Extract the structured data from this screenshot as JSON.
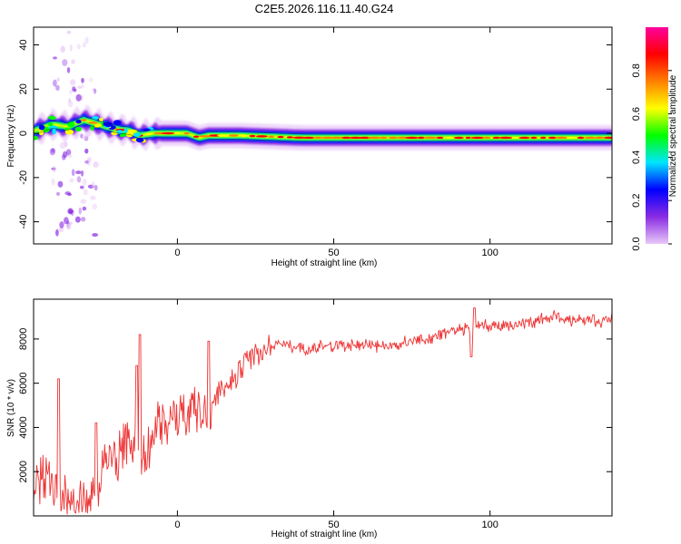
{
  "figure": {
    "title": "C2E5.2026.116.11.40.G24"
  },
  "chart_data": [
    {
      "type": "heatmap",
      "xlabel": "Height of straight line (km)",
      "ylabel": "Frequency (Hz)",
      "xlim": [
        -46,
        139
      ],
      "ylim": [
        -50,
        48
      ],
      "xticks": [
        0,
        50,
        100
      ],
      "yticks": [
        -40,
        -20,
        0,
        20,
        40
      ],
      "ridge": {
        "x": [
          -46,
          -40,
          -35,
          -30,
          -25,
          -20,
          -15,
          -12,
          -8,
          -5,
          0,
          3,
          5,
          7,
          10,
          20,
          40,
          60,
          80,
          90,
          95,
          100,
          120,
          139
        ],
        "y": [
          1,
          4,
          3,
          6,
          4,
          2,
          1,
          -1,
          0,
          0,
          0,
          0,
          -1,
          -2,
          -1,
          -1,
          -2,
          -2,
          -2,
          -2,
          -2,
          -2,
          -2,
          -2
        ]
      },
      "colorbar": {
        "label": "Normalized spectral amplitude",
        "range": [
          0.0,
          1.0
        ],
        "ticks": [
          "0.0",
          "0.2",
          "0.4",
          "0.6",
          "0.8"
        ],
        "colors": [
          "#e8c8f8",
          "#8a2be2",
          "#0000ff",
          "#00e5ff",
          "#00ff00",
          "#ffff00",
          "#ff8000",
          "#ff0000",
          "#ff00a0"
        ]
      }
    },
    {
      "type": "line",
      "xlabel": "Height of straight line (km)",
      "ylabel": "SNR (10 * v/v)",
      "xlim": [
        -46,
        139
      ],
      "ylim": [
        0,
        9800
      ],
      "xticks": [
        0,
        50,
        100
      ],
      "yticks": [
        2000,
        4000,
        6000,
        8000
      ],
      "color": "#ee3333",
      "series": [
        {
          "x": [
            -46,
            -44,
            -42,
            -40,
            -38,
            -36,
            -34,
            -32,
            -30,
            -28,
            -26,
            -24,
            -22,
            -20,
            -18,
            -16,
            -14,
            -12,
            -10,
            -8,
            -6,
            -4,
            -2,
            0,
            2,
            4,
            6,
            8,
            10,
            12,
            14,
            16,
            18,
            20,
            24,
            28,
            32,
            36,
            40,
            45,
            50,
            55,
            60,
            65,
            70,
            75,
            80,
            85,
            90,
            95,
            100,
            105,
            110,
            115,
            120,
            125,
            130,
            135,
            139
          ],
          "y": [
            1000,
            1500,
            1800,
            1300,
            1000,
            900,
            700,
            500,
            400,
            500,
            900,
            1900,
            2600,
            2500,
            2900,
            3300,
            3300,
            3000,
            3100,
            3400,
            4100,
            4300,
            4400,
            4200,
            4700,
            4700,
            5000,
            4700,
            4300,
            5300,
            5700,
            6000,
            6200,
            6700,
            7200,
            7500,
            7800,
            7700,
            7600,
            7600,
            7700,
            7700,
            7700,
            7700,
            7700,
            7900,
            8000,
            8200,
            8400,
            8600,
            8600,
            8600,
            8700,
            8800,
            9000,
            8900,
            8900,
            8800,
            8900
          ]
        }
      ],
      "spikes": [
        {
          "x": -38,
          "y": 6200
        },
        {
          "x": -26,
          "y": 4200
        },
        {
          "x": -12,
          "y": 8200
        },
        {
          "x": -13,
          "y": 6800
        },
        {
          "x": 10,
          "y": 7900
        },
        {
          "x": 95,
          "y": 9400
        },
        {
          "x": 94,
          "y": 7200
        }
      ]
    }
  ]
}
